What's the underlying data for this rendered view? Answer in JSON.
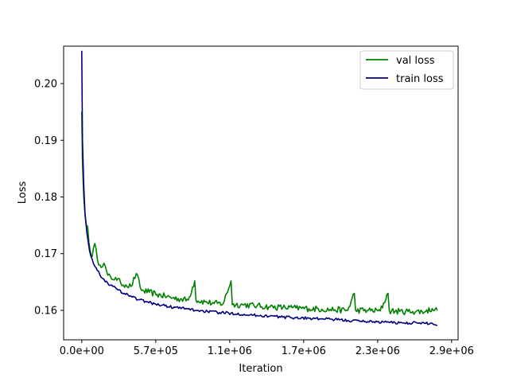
{
  "chart_data": {
    "type": "line",
    "xlabel": "Iteration",
    "ylabel": "Loss",
    "xlim": [
      -140000,
      2900000
    ],
    "ylim": [
      0.1548,
      0.2066
    ],
    "grid": false,
    "legend_position": "top-right",
    "x_ticks": [
      {
        "value": 0,
        "label": "0.0e+00"
      },
      {
        "value": 570000,
        "label": "5.7e+05"
      },
      {
        "value": 1140000,
        "label": "1.1e+06"
      },
      {
        "value": 1710000,
        "label": "1.7e+06"
      },
      {
        "value": 2280000,
        "label": "2.3e+06"
      },
      {
        "value": 2850000,
        "label": "2.9e+06"
      }
    ],
    "y_ticks": [
      {
        "value": 0.16,
        "label": "0.16"
      },
      {
        "value": 0.17,
        "label": "0.17"
      },
      {
        "value": 0.18,
        "label": "0.18"
      },
      {
        "value": 0.19,
        "label": "0.19"
      },
      {
        "value": 0.2,
        "label": "0.20"
      }
    ],
    "series": [
      {
        "name": "val loss",
        "color": "#008000",
        "points": [
          [
            0,
            0.195
          ],
          [
            5000,
            0.186
          ],
          [
            15000,
            0.18
          ],
          [
            25000,
            0.177
          ],
          [
            35000,
            0.175
          ],
          [
            45000,
            0.1748
          ],
          [
            55000,
            0.172
          ],
          [
            65000,
            0.1705
          ],
          [
            80000,
            0.1695
          ],
          [
            100000,
            0.1718
          ],
          [
            120000,
            0.169
          ],
          [
            140000,
            0.168
          ],
          [
            170000,
            0.1683
          ],
          [
            200000,
            0.1662
          ],
          [
            230000,
            0.1655
          ],
          [
            260000,
            0.1658
          ],
          [
            300000,
            0.1648
          ],
          [
            340000,
            0.1645
          ],
          [
            380000,
            0.1642
          ],
          [
            420000,
            0.1665
          ],
          [
            460000,
            0.1635
          ],
          [
            520000,
            0.1632
          ],
          [
            580000,
            0.1628
          ],
          [
            640000,
            0.1625
          ],
          [
            700000,
            0.1622
          ],
          [
            760000,
            0.162
          ],
          [
            820000,
            0.1618
          ],
          [
            870000,
            0.1652
          ],
          [
            880000,
            0.1618
          ],
          [
            950000,
            0.1615
          ],
          [
            1020000,
            0.1612
          ],
          [
            1090000,
            0.1612
          ],
          [
            1150000,
            0.1652
          ],
          [
            1160000,
            0.161
          ],
          [
            1250000,
            0.161
          ],
          [
            1350000,
            0.1608
          ],
          [
            1450000,
            0.1606
          ],
          [
            1550000,
            0.1605
          ],
          [
            1650000,
            0.1604
          ],
          [
            1750000,
            0.1603
          ],
          [
            1850000,
            0.1602
          ],
          [
            1950000,
            0.1601
          ],
          [
            2050000,
            0.16
          ],
          [
            2100000,
            0.163
          ],
          [
            2110000,
            0.16
          ],
          [
            2200000,
            0.16
          ],
          [
            2300000,
            0.1599
          ],
          [
            2360000,
            0.163
          ],
          [
            2370000,
            0.1599
          ],
          [
            2450000,
            0.1598
          ],
          [
            2550000,
            0.1598
          ],
          [
            2650000,
            0.1598
          ],
          [
            2700000,
            0.1603
          ],
          [
            2740000,
            0.16
          ]
        ]
      },
      {
        "name": "train loss",
        "color": "#000080",
        "points": [
          [
            0,
            0.2058
          ],
          [
            5000,
            0.19
          ],
          [
            15000,
            0.182
          ],
          [
            25000,
            0.177
          ],
          [
            40000,
            0.1735
          ],
          [
            60000,
            0.1705
          ],
          [
            80000,
            0.169
          ],
          [
            110000,
            0.1675
          ],
          [
            140000,
            0.1662
          ],
          [
            170000,
            0.1655
          ],
          [
            200000,
            0.1648
          ],
          [
            240000,
            0.1642
          ],
          [
            280000,
            0.1636
          ],
          [
            330000,
            0.163
          ],
          [
            380000,
            0.1625
          ],
          [
            440000,
            0.1619
          ],
          [
            500000,
            0.1615
          ],
          [
            570000,
            0.1611
          ],
          [
            640000,
            0.1608
          ],
          [
            720000,
            0.1605
          ],
          [
            800000,
            0.1603
          ],
          [
            880000,
            0.16
          ],
          [
            970000,
            0.1598
          ],
          [
            1060000,
            0.1596
          ],
          [
            1150000,
            0.1595
          ],
          [
            1250000,
            0.1593
          ],
          [
            1350000,
            0.1591
          ],
          [
            1450000,
            0.159
          ],
          [
            1550000,
            0.1588
          ],
          [
            1650000,
            0.1587
          ],
          [
            1750000,
            0.1586
          ],
          [
            1850000,
            0.1585
          ],
          [
            1950000,
            0.1584
          ],
          [
            2050000,
            0.1582
          ],
          [
            2150000,
            0.1581
          ],
          [
            2250000,
            0.158
          ],
          [
            2350000,
            0.1579
          ],
          [
            2450000,
            0.1578
          ],
          [
            2550000,
            0.1578
          ],
          [
            2650000,
            0.1577
          ],
          [
            2700000,
            0.1577
          ],
          [
            2740000,
            0.1573
          ]
        ]
      }
    ]
  }
}
